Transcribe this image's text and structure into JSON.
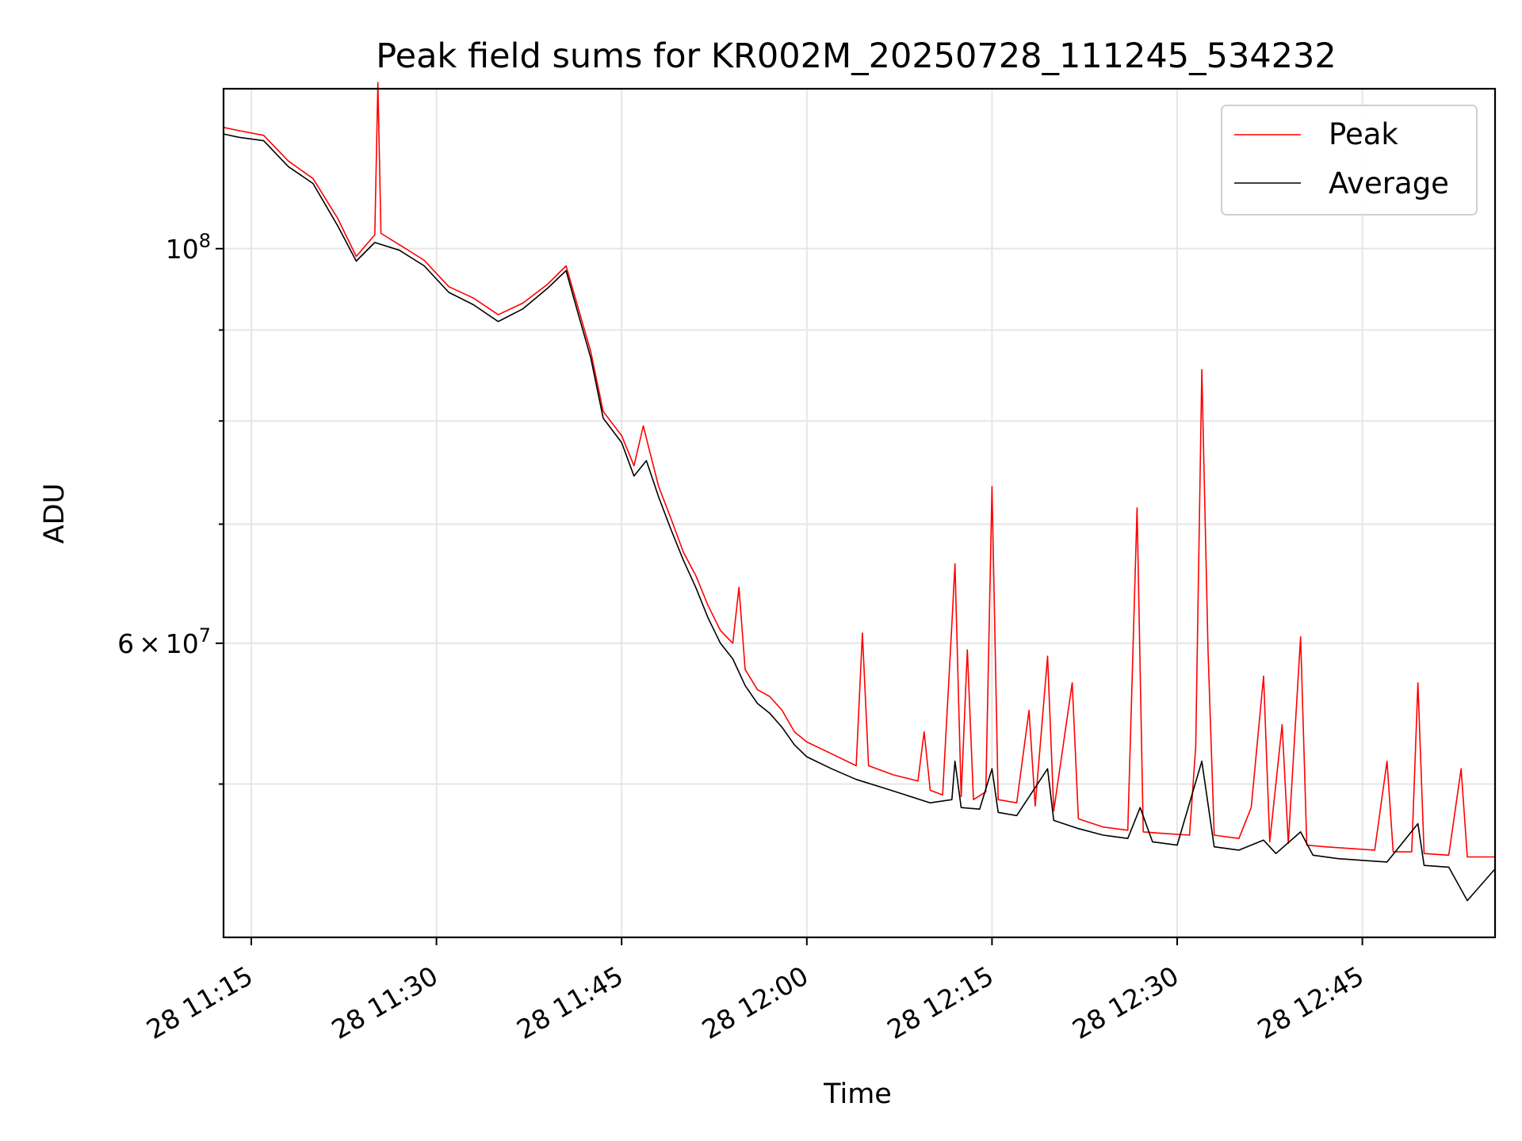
{
  "chart_data": {
    "type": "line",
    "title": "Peak field sums for KR002M_20250728_111245_534232",
    "xlabel": "Time",
    "ylabel": "ADU",
    "xscale": "time",
    "yscale": "log",
    "xlim": [
      "2025-07-28 11:12:45",
      "2025-07-28 12:55:45"
    ],
    "ylim": [
      41000000,
      123000000
    ],
    "grid": true,
    "legend_position": "upper right",
    "x_ticks": [
      {
        "t": "2025-07-28 11:15",
        "label": "28 11:15"
      },
      {
        "t": "2025-07-28 11:30",
        "label": "28 11:30"
      },
      {
        "t": "2025-07-28 11:45",
        "label": "28 11:45"
      },
      {
        "t": "2025-07-28 12:00",
        "label": "28 12:00"
      },
      {
        "t": "2025-07-28 12:15",
        "label": "28 12:15"
      },
      {
        "t": "2025-07-28 12:30",
        "label": "28 12:30"
      },
      {
        "t": "2025-07-28 12:45",
        "label": "28 12:45"
      }
    ],
    "y_major_ticks": [
      {
        "value": 100000000,
        "base": "10",
        "exp": "8"
      },
      {
        "value": 60000000,
        "mant": "6",
        "base": "10",
        "exp": "7"
      }
    ],
    "y_minor_ticks": [
      50000000,
      70000000,
      80000000,
      90000000
    ],
    "series": [
      {
        "name": "Peak",
        "color": "#ff0000",
        "points": [
          [
            "2025-07-28 11:12:45",
            117000000
          ],
          [
            "2025-07-28 11:14:00",
            116500000
          ],
          [
            "2025-07-28 11:16:00",
            115800000
          ],
          [
            "2025-07-28 11:18:00",
            112000000
          ],
          [
            "2025-07-28 11:20:00",
            109500000
          ],
          [
            "2025-07-28 11:22:00",
            104000000
          ],
          [
            "2025-07-28 11:23:30",
            99000000
          ],
          [
            "2025-07-28 11:25:00",
            101800000
          ],
          [
            "2025-07-28 11:25:15",
            124000000
          ],
          [
            "2025-07-28 11:25:30",
            102000000
          ],
          [
            "2025-07-28 11:27:00",
            100500000
          ],
          [
            "2025-07-28 11:29:00",
            98500000
          ],
          [
            "2025-07-28 11:31:00",
            95200000
          ],
          [
            "2025-07-28 11:33:00",
            93800000
          ],
          [
            "2025-07-28 11:35:00",
            91800000
          ],
          [
            "2025-07-28 11:37:00",
            93200000
          ],
          [
            "2025-07-28 11:39:00",
            95500000
          ],
          [
            "2025-07-28 11:40:30",
            97800000
          ],
          [
            "2025-07-28 11:41:30",
            92500000
          ],
          [
            "2025-07-28 11:42:30",
            87500000
          ],
          [
            "2025-07-28 11:43:30",
            81000000
          ],
          [
            "2025-07-28 11:45:00",
            78500000
          ],
          [
            "2025-07-28 11:46:00",
            75500000
          ],
          [
            "2025-07-28 11:46:45",
            79500000
          ],
          [
            "2025-07-28 11:47:15",
            77000000
          ],
          [
            "2025-07-28 11:48:00",
            73500000
          ],
          [
            "2025-07-28 11:49:00",
            70500000
          ],
          [
            "2025-07-28 11:50:00",
            67500000
          ],
          [
            "2025-07-28 11:51:00",
            65500000
          ],
          [
            "2025-07-28 11:52:00",
            63000000
          ],
          [
            "2025-07-28 11:53:00",
            61000000
          ],
          [
            "2025-07-28 11:54:00",
            60000000
          ],
          [
            "2025-07-28 11:54:30",
            64500000
          ],
          [
            "2025-07-28 11:55:00",
            58000000
          ],
          [
            "2025-07-28 11:56:00",
            56500000
          ],
          [
            "2025-07-28 11:57:00",
            56000000
          ],
          [
            "2025-07-28 11:58:00",
            55000000
          ],
          [
            "2025-07-28 11:59:00",
            53500000
          ],
          [
            "2025-07-28 12:00:00",
            52800000
          ],
          [
            "2025-07-28 12:02:00",
            52000000
          ],
          [
            "2025-07-28 12:04:00",
            51200000
          ],
          [
            "2025-07-28 12:04:30",
            60800000
          ],
          [
            "2025-07-28 12:05:00",
            51200000
          ],
          [
            "2025-07-28 12:07:00",
            50600000
          ],
          [
            "2025-07-28 12:09:00",
            50200000
          ],
          [
            "2025-07-28 12:09:30",
            53500000
          ],
          [
            "2025-07-28 12:10:00",
            49600000
          ],
          [
            "2025-07-28 12:11:00",
            49300000
          ],
          [
            "2025-07-28 12:11:45",
            61500000
          ],
          [
            "2025-07-28 12:12:00",
            66500000
          ],
          [
            "2025-07-28 12:12:30",
            49200000
          ],
          [
            "2025-07-28 12:13:00",
            59500000
          ],
          [
            "2025-07-28 12:13:30",
            49000000
          ],
          [
            "2025-07-28 12:14:30",
            49500000
          ],
          [
            "2025-07-28 12:15:00",
            73500000
          ],
          [
            "2025-07-28 12:15:30",
            49000000
          ],
          [
            "2025-07-28 12:17:00",
            48800000
          ],
          [
            "2025-07-28 12:18:00",
            55000000
          ],
          [
            "2025-07-28 12:18:30",
            48600000
          ],
          [
            "2025-07-28 12:19:30",
            59000000
          ],
          [
            "2025-07-28 12:20:00",
            48300000
          ],
          [
            "2025-07-28 12:21:30",
            57000000
          ],
          [
            "2025-07-28 12:22:00",
            47800000
          ],
          [
            "2025-07-28 12:24:00",
            47300000
          ],
          [
            "2025-07-28 12:26:00",
            47100000
          ],
          [
            "2025-07-28 12:26:45",
            71500000
          ],
          [
            "2025-07-28 12:27:15",
            47000000
          ],
          [
            "2025-07-28 12:29:00",
            46900000
          ],
          [
            "2025-07-28 12:31:00",
            46800000
          ],
          [
            "2025-07-28 12:31:30",
            52500000
          ],
          [
            "2025-07-28 12:32:00",
            85500000
          ],
          [
            "2025-07-28 12:32:30",
            59500000
          ],
          [
            "2025-07-28 12:33:00",
            46800000
          ],
          [
            "2025-07-28 12:35:00",
            46600000
          ],
          [
            "2025-07-28 12:36:00",
            48500000
          ],
          [
            "2025-07-28 12:37:00",
            57500000
          ],
          [
            "2025-07-28 12:37:30",
            46400000
          ],
          [
            "2025-07-28 12:38:30",
            54000000
          ],
          [
            "2025-07-28 12:39:00",
            46300000
          ],
          [
            "2025-07-28 12:40:00",
            60500000
          ],
          [
            "2025-07-28 12:40:30",
            46200000
          ],
          [
            "2025-07-28 12:42:00",
            46100000
          ],
          [
            "2025-07-28 12:44:00",
            46000000
          ],
          [
            "2025-07-28 12:46:00",
            45900000
          ],
          [
            "2025-07-28 12:47:00",
            51500000
          ],
          [
            "2025-07-28 12:47:30",
            45800000
          ],
          [
            "2025-07-28 12:49:00",
            45800000
          ],
          [
            "2025-07-28 12:49:30",
            57000000
          ],
          [
            "2025-07-28 12:50:00",
            45700000
          ],
          [
            "2025-07-28 12:52:00",
            45600000
          ],
          [
            "2025-07-28 12:53:00",
            51000000
          ],
          [
            "2025-07-28 12:53:30",
            45500000
          ],
          [
            "2025-07-28 12:55:45",
            45500000
          ]
        ]
      },
      {
        "name": "Average",
        "color": "#000000",
        "points": [
          [
            "2025-07-28 11:12:45",
            116000000
          ],
          [
            "2025-07-28 11:14:00",
            115500000
          ],
          [
            "2025-07-28 11:16:00",
            115000000
          ],
          [
            "2025-07-28 11:18:00",
            111200000
          ],
          [
            "2025-07-28 11:20:00",
            108800000
          ],
          [
            "2025-07-28 11:22:00",
            103000000
          ],
          [
            "2025-07-28 11:23:30",
            98400000
          ],
          [
            "2025-07-28 11:25:00",
            100800000
          ],
          [
            "2025-07-28 11:27:00",
            99800000
          ],
          [
            "2025-07-28 11:29:00",
            97800000
          ],
          [
            "2025-07-28 11:31:00",
            94500000
          ],
          [
            "2025-07-28 11:33:00",
            93000000
          ],
          [
            "2025-07-28 11:35:00",
            91000000
          ],
          [
            "2025-07-28 11:37:00",
            92500000
          ],
          [
            "2025-07-28 11:39:00",
            95000000
          ],
          [
            "2025-07-28 11:40:30",
            97200000
          ],
          [
            "2025-07-28 11:41:30",
            91800000
          ],
          [
            "2025-07-28 11:42:30",
            86800000
          ],
          [
            "2025-07-28 11:43:30",
            80300000
          ],
          [
            "2025-07-28 11:45:00",
            77800000
          ],
          [
            "2025-07-28 11:46:00",
            74500000
          ],
          [
            "2025-07-28 11:47:00",
            76000000
          ],
          [
            "2025-07-28 11:48:00",
            72500000
          ],
          [
            "2025-07-28 11:49:00",
            69500000
          ],
          [
            "2025-07-28 11:50:00",
            66800000
          ],
          [
            "2025-07-28 11:51:00",
            64500000
          ],
          [
            "2025-07-28 11:52:00",
            62000000
          ],
          [
            "2025-07-28 11:53:00",
            60000000
          ],
          [
            "2025-07-28 11:54:00",
            58800000
          ],
          [
            "2025-07-28 11:55:00",
            56800000
          ],
          [
            "2025-07-28 11:56:00",
            55500000
          ],
          [
            "2025-07-28 11:57:00",
            54800000
          ],
          [
            "2025-07-28 11:58:00",
            53800000
          ],
          [
            "2025-07-28 11:59:00",
            52600000
          ],
          [
            "2025-07-28 12:00:00",
            51800000
          ],
          [
            "2025-07-28 12:02:00",
            51000000
          ],
          [
            "2025-07-28 12:04:00",
            50300000
          ],
          [
            "2025-07-28 12:06:00",
            49800000
          ],
          [
            "2025-07-28 12:08:00",
            49300000
          ],
          [
            "2025-07-28 12:10:00",
            48800000
          ],
          [
            "2025-07-28 12:11:45",
            49000000
          ],
          [
            "2025-07-28 12:12:00",
            51500000
          ],
          [
            "2025-07-28 12:12:30",
            48500000
          ],
          [
            "2025-07-28 12:14:00",
            48400000
          ],
          [
            "2025-07-28 12:15:00",
            51000000
          ],
          [
            "2025-07-28 12:15:30",
            48200000
          ],
          [
            "2025-07-28 12:17:00",
            48000000
          ],
          [
            "2025-07-28 12:19:30",
            51000000
          ],
          [
            "2025-07-28 12:20:00",
            47700000
          ],
          [
            "2025-07-28 12:22:00",
            47200000
          ],
          [
            "2025-07-28 12:24:00",
            46800000
          ],
          [
            "2025-07-28 12:26:00",
            46600000
          ],
          [
            "2025-07-28 12:27:00",
            48500000
          ],
          [
            "2025-07-28 12:28:00",
            46400000
          ],
          [
            "2025-07-28 12:30:00",
            46200000
          ],
          [
            "2025-07-28 12:32:00",
            51500000
          ],
          [
            "2025-07-28 12:33:00",
            46100000
          ],
          [
            "2025-07-28 12:35:00",
            45900000
          ],
          [
            "2025-07-28 12:37:00",
            46500000
          ],
          [
            "2025-07-28 12:38:00",
            45700000
          ],
          [
            "2025-07-28 12:40:00",
            47000000
          ],
          [
            "2025-07-28 12:41:00",
            45600000
          ],
          [
            "2025-07-28 12:43:00",
            45400000
          ],
          [
            "2025-07-28 12:45:00",
            45300000
          ],
          [
            "2025-07-28 12:47:00",
            45200000
          ],
          [
            "2025-07-28 12:49:30",
            47500000
          ],
          [
            "2025-07-28 12:50:00",
            45000000
          ],
          [
            "2025-07-28 12:52:00",
            44900000
          ],
          [
            "2025-07-28 12:53:30",
            43000000
          ],
          [
            "2025-07-28 12:55:45",
            44800000
          ]
        ]
      }
    ]
  }
}
